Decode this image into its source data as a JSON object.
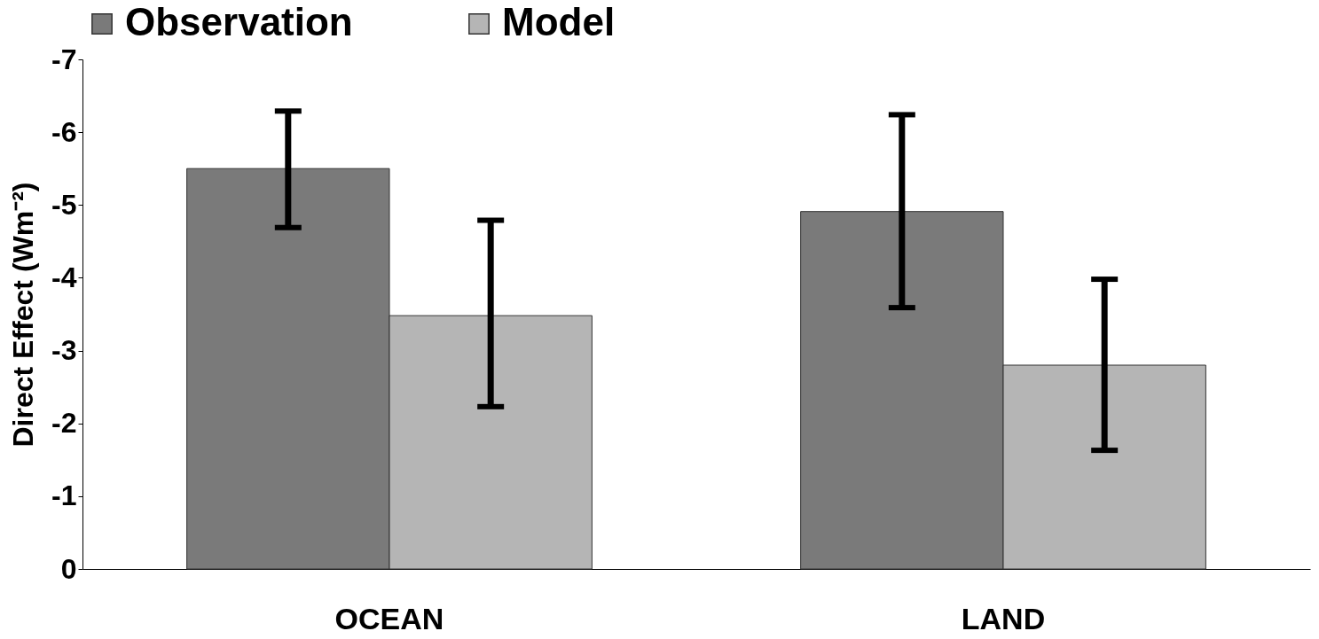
{
  "chart_data": {
    "type": "bar",
    "ylabel": "Direct Effect (Wm⁻²)",
    "categories": [
      "OCEAN",
      "LAND"
    ],
    "series": [
      {
        "name": "Observation",
        "color": "#7a7a7a",
        "values": [
          -5.5,
          -4.91
        ],
        "errors": [
          [
            -6.29,
            -4.69
          ],
          [
            -6.24,
            -3.59
          ]
        ]
      },
      {
        "name": "Model",
        "color": "#b5b5b5",
        "values": [
          -3.48,
          -2.8
        ],
        "errors": [
          [
            -4.79,
            -2.23
          ],
          [
            -3.98,
            -1.63
          ]
        ]
      }
    ],
    "ylim": [
      0,
      -7
    ],
    "yticks": [
      0,
      -1,
      -2,
      -3,
      -4,
      -5,
      -6,
      -7
    ],
    "grid": false,
    "legend": "top"
  }
}
